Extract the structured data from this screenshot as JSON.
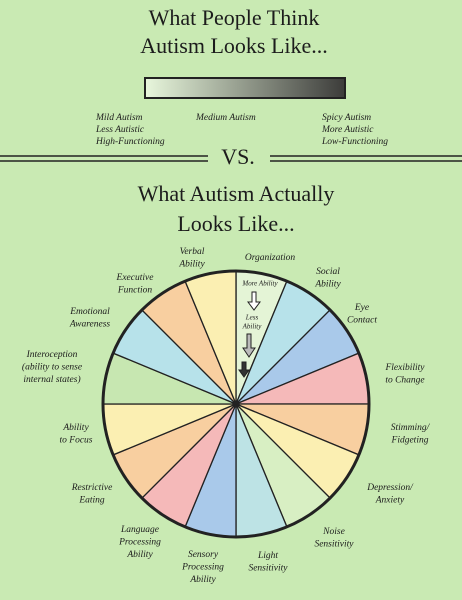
{
  "header": {
    "title": [
      "What People Think",
      "Autism Looks Like..."
    ]
  },
  "spectrum": {
    "left": [
      "Mild Autism",
      "Less Autistic",
      "High-Functioning"
    ],
    "middle": "Medium Autism",
    "right": [
      "Spicy Autism",
      "More Autistic",
      "Low-Functioning"
    ]
  },
  "divider": "VS.",
  "subtitle": [
    "What Autism Actually",
    "Looks Like..."
  ],
  "pie": {
    "annotations": [
      [
        "More Ability"
      ],
      [
        "Less",
        "Ability"
      ]
    ],
    "segments": [
      {
        "label": [
          "Organization"
        ],
        "color": "#e4f4d6"
      },
      {
        "label": [
          "Social",
          "Ability"
        ],
        "color": "#b7e2ea"
      },
      {
        "label": [
          "Eye",
          "Contact"
        ],
        "color": "#a9c9ea"
      },
      {
        "label": [
          "Flexibility",
          "to Change"
        ],
        "color": "#f5b9b9"
      },
      {
        "label": [
          "Stimming/",
          "Fidgeting"
        ],
        "color": "#f8cfa0"
      },
      {
        "label": [
          "Depression/",
          "Anxiety"
        ],
        "color": "#fbefb2"
      },
      {
        "label": [
          "Noise",
          "Sensitivity"
        ],
        "color": "#d8efc3"
      },
      {
        "label": [
          "Light",
          "Sensitivity"
        ],
        "color": "#bde3e5"
      },
      {
        "label": [
          "Sensory",
          "Processing",
          "Ability"
        ],
        "color": "#a9c9ea"
      },
      {
        "label": [
          "Language",
          "Processing",
          "Ability"
        ],
        "color": "#f5b9b9"
      },
      {
        "label": [
          "Restrictive",
          "Eating"
        ],
        "color": "#f8cfa0"
      },
      {
        "label": [
          "Ability",
          "to Focus"
        ],
        "color": "#fbefb2"
      },
      {
        "label": [
          "Interoception",
          "(ability to sense",
          "internal states)"
        ],
        "color": "#c7e7b1"
      },
      {
        "label": [
          "Emotional",
          "Awareness"
        ],
        "color": "#b7e2ea"
      },
      {
        "label": [
          "Executive",
          "Function"
        ],
        "color": "#f8cfa0"
      },
      {
        "label": [
          "Verbal",
          "Ability"
        ],
        "color": "#fbefb2"
      }
    ]
  }
}
